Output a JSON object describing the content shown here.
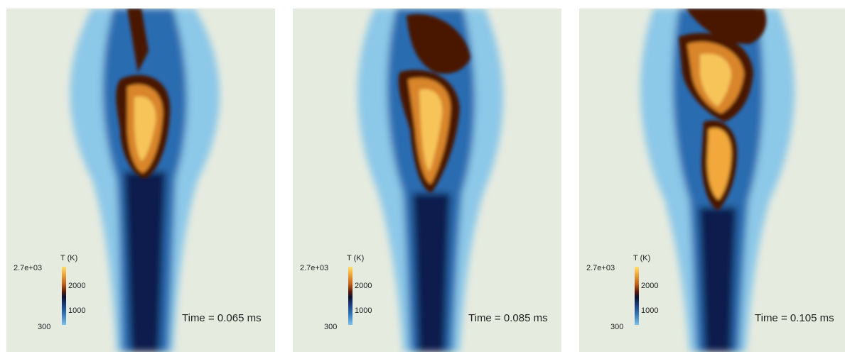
{
  "panels": [
    {
      "time_label": "Time = 0.065 ms",
      "colorbar": {
        "title": "T (K)",
        "max_label": "2.7e+03",
        "mid_high": "2000",
        "mid_low": "1000",
        "min_label": "300"
      }
    },
    {
      "time_label": "Time = 0.085 ms",
      "colorbar": {
        "title": "T (K)",
        "max_label": "2.7e+03",
        "mid_high": "2000",
        "mid_low": "1000",
        "min_label": "300"
      }
    },
    {
      "time_label": "Time = 0.105 ms",
      "colorbar": {
        "title": "T (K)",
        "max_label": "2.7e+03",
        "mid_high": "2000",
        "mid_low": "1000",
        "min_label": "300"
      }
    }
  ],
  "colors": {
    "background": "#e6ebdf",
    "cold_fuel": "#0b1f4d",
    "mixing": "#2c6cb0",
    "light_mixing": "#8cc8e8",
    "flame_hot": "#f2a83a",
    "flame_edge": "#4a1206"
  }
}
